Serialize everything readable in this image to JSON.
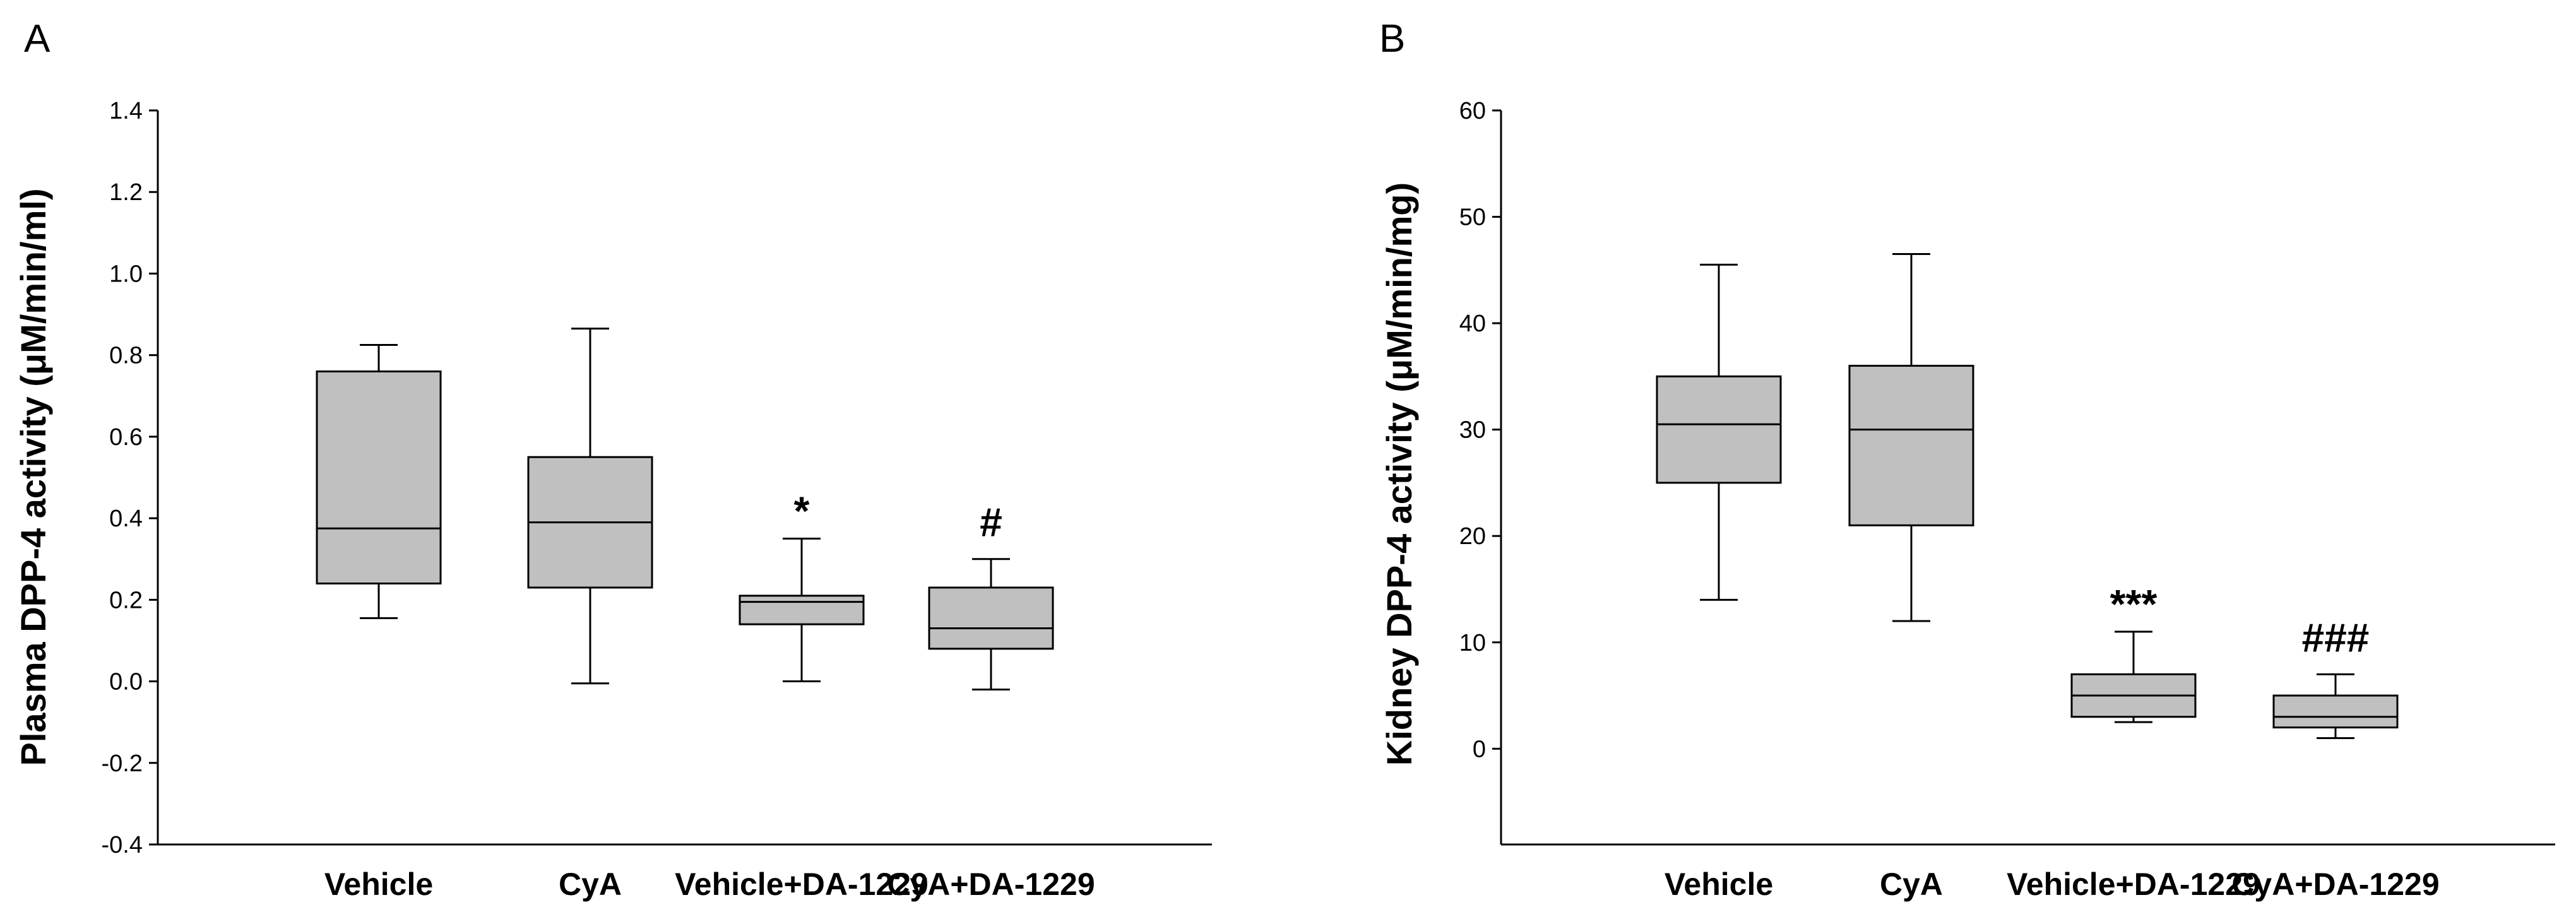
{
  "chart_data": [
    {
      "type": "box",
      "panel": "A",
      "title": "",
      "ylabel": "Plasma DPP-4 activity (μM/min/ml)",
      "xlabel": "",
      "ylim": [
        -0.4,
        1.4
      ],
      "yticks": [
        -0.4,
        -0.2,
        0.0,
        0.2,
        0.4,
        0.6,
        0.8,
        1.0,
        1.2,
        1.4
      ],
      "ytick_labels": [
        "-0.4",
        "-0.2",
        "0.0",
        "0.2",
        "0.4",
        "0.6",
        "0.8",
        "1.0",
        "1.2",
        "1.4"
      ],
      "categories": [
        "Vehicle",
        "CyA",
        "Vehicle+DA-1229",
        "CyA+DA-1229"
      ],
      "boxes": [
        {
          "min": 0.155,
          "q1": 0.24,
          "median": 0.375,
          "q3": 0.76,
          "max": 0.825,
          "annotation": ""
        },
        {
          "min": -0.005,
          "q1": 0.23,
          "median": 0.39,
          "q3": 0.55,
          "max": 0.865,
          "annotation": ""
        },
        {
          "min": 0.0,
          "q1": 0.14,
          "median": 0.195,
          "q3": 0.21,
          "max": 0.35,
          "annotation": "*"
        },
        {
          "min": -0.02,
          "q1": 0.08,
          "median": 0.13,
          "q3": 0.23,
          "max": 0.3,
          "annotation": "#"
        }
      ]
    },
    {
      "type": "box",
      "panel": "B",
      "title": "",
      "ylabel": "Kidney DPP-4 activity (μM/min/mg)",
      "xlabel": "",
      "ylim": [
        -9,
        60
      ],
      "yticks": [
        0,
        10,
        20,
        30,
        40,
        50,
        60
      ],
      "ytick_labels": [
        "0",
        "10",
        "20",
        "30",
        "40",
        "50",
        "60"
      ],
      "categories": [
        "Vehicle",
        "CyA",
        "Vehicle+DA-1229",
        "CyA+DA-1229"
      ],
      "boxes": [
        {
          "min": 14,
          "q1": 25,
          "median": 30.5,
          "q3": 35,
          "max": 45.5,
          "annotation": ""
        },
        {
          "min": 12,
          "q1": 21,
          "median": 30,
          "q3": 36,
          "max": 46.5,
          "annotation": ""
        },
        {
          "min": 2.5,
          "q1": 3,
          "median": 5,
          "q3": 7,
          "max": 11,
          "annotation": "***"
        },
        {
          "min": 1,
          "q1": 2,
          "median": 3,
          "q3": 5,
          "max": 7,
          "annotation": "###"
        }
      ]
    }
  ],
  "colors": {
    "box_fill": "#c0c0c0",
    "line": "#000000",
    "background": "#ffffff"
  }
}
